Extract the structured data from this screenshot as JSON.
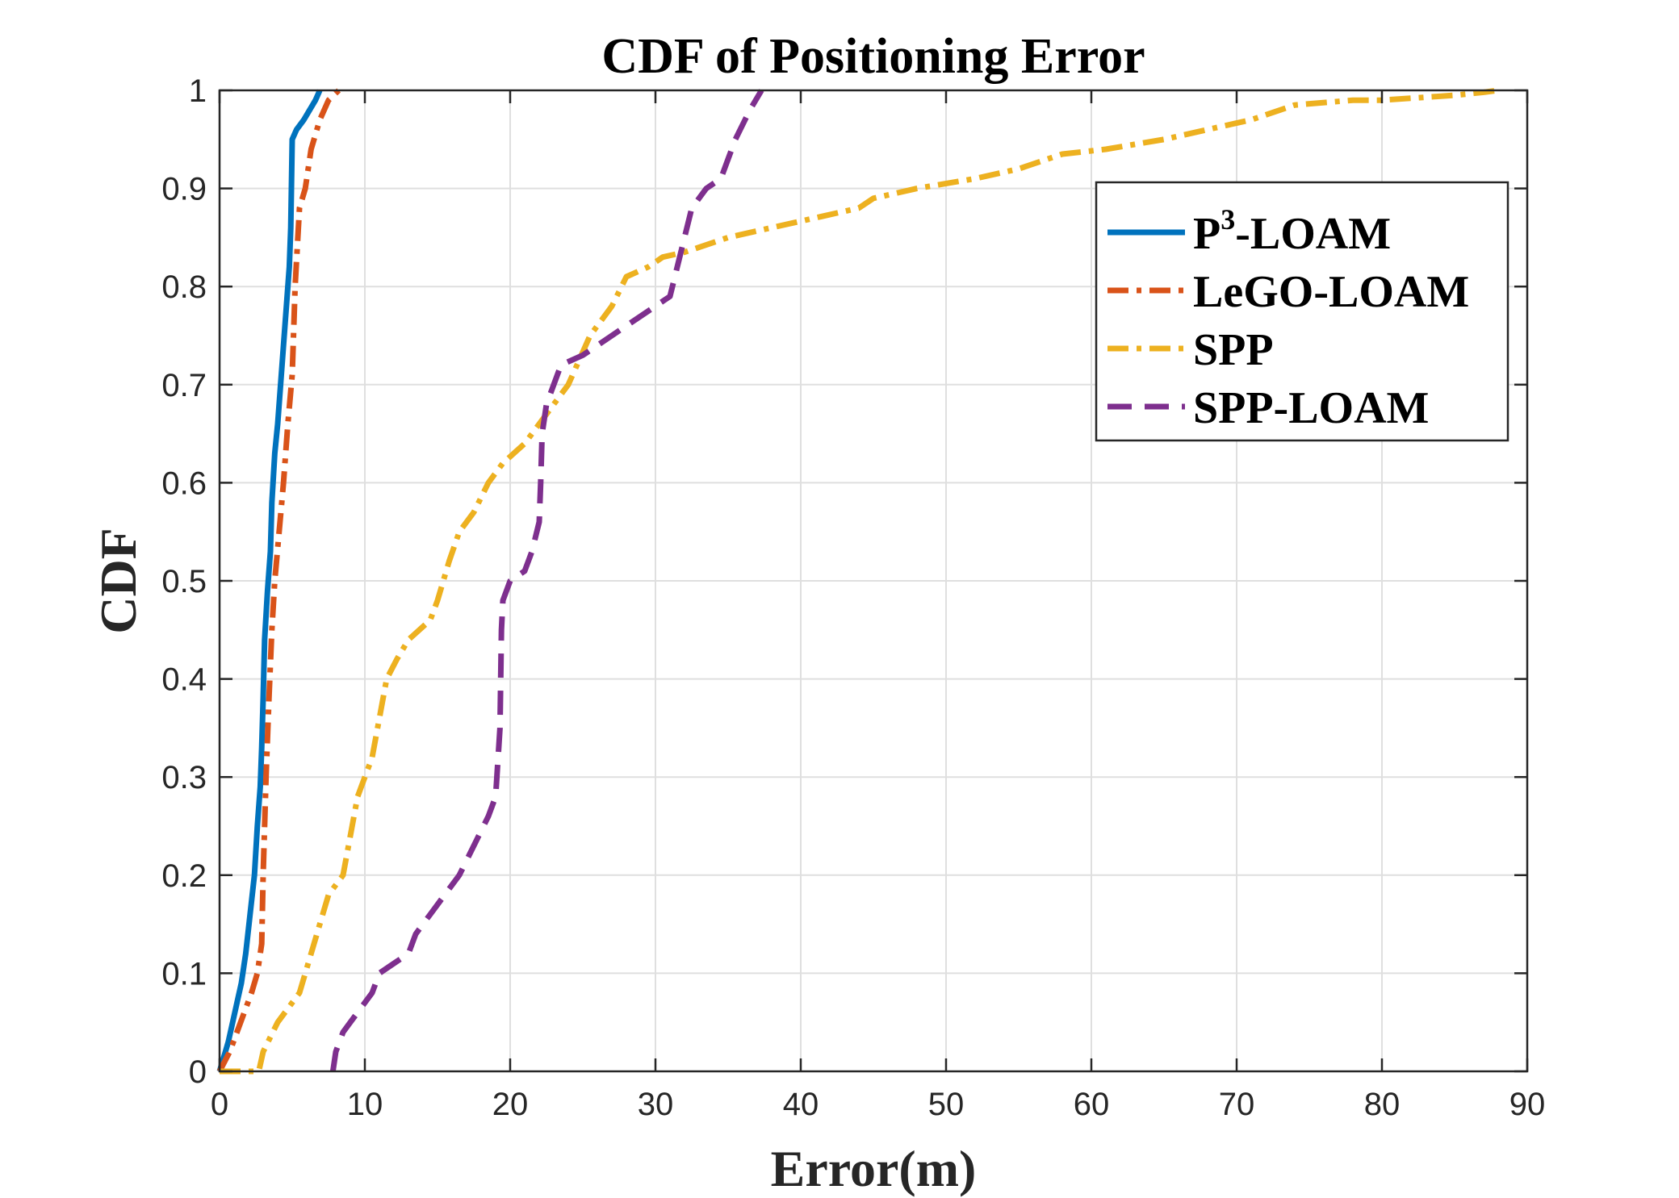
{
  "chart_data": {
    "type": "line",
    "title": "CDF of Positioning Error",
    "xlabel": "Error(m)",
    "ylabel": "CDF",
    "xlim": [
      0,
      90
    ],
    "ylim": [
      0,
      1
    ],
    "xticks": [
      0,
      10,
      20,
      30,
      40,
      50,
      60,
      70,
      80,
      90
    ],
    "yticks": [
      0,
      0.1,
      0.2,
      0.3,
      0.4,
      0.5,
      0.6,
      0.7,
      0.8,
      0.9,
      1
    ],
    "ytick_labels": [
      "0",
      "0.1",
      "0.2",
      "0.3",
      "0.4",
      "0.5",
      "0.6",
      "0.7",
      "0.8",
      "0.9",
      "1"
    ],
    "grid": true,
    "legend_position": "top-right",
    "series": [
      {
        "name": "P-LOAM",
        "name_superscript": "3",
        "color": "#0072BD",
        "style": "solid",
        "x": [
          0.0,
          0.4,
          0.6,
          0.9,
          1.2,
          1.5,
          1.8,
          2.1,
          2.4,
          2.6,
          2.8,
          2.9,
          3.0,
          3.1,
          3.3,
          3.5,
          3.6,
          3.8,
          4.0,
          4.2,
          4.5,
          4.8,
          4.9,
          5.0,
          5.3,
          5.8,
          6.2,
          6.6,
          6.9
        ],
        "y": [
          0.0,
          0.02,
          0.03,
          0.05,
          0.07,
          0.09,
          0.12,
          0.16,
          0.2,
          0.25,
          0.29,
          0.33,
          0.38,
          0.44,
          0.49,
          0.53,
          0.58,
          0.63,
          0.66,
          0.7,
          0.76,
          0.82,
          0.86,
          0.95,
          0.96,
          0.97,
          0.98,
          0.99,
          1.0
        ]
      },
      {
        "name": "LeGO-LOAM",
        "color": "#D95319",
        "style": "dashdot",
        "x": [
          0.0,
          0.7,
          1.2,
          1.7,
          2.2,
          2.6,
          2.9,
          3.0,
          3.2,
          3.4,
          3.6,
          3.8,
          4.1,
          4.4,
          4.7,
          5.0,
          5.2,
          5.5,
          5.9,
          6.3,
          6.9,
          7.5,
          8.2
        ],
        "y": [
          0.0,
          0.02,
          0.04,
          0.06,
          0.08,
          0.1,
          0.13,
          0.2,
          0.3,
          0.38,
          0.45,
          0.5,
          0.55,
          0.6,
          0.66,
          0.71,
          0.8,
          0.88,
          0.9,
          0.94,
          0.97,
          0.99,
          1.0
        ]
      },
      {
        "name": "SPP",
        "color": "#EDB120",
        "style": "dashdot",
        "x": [
          0.0,
          2.7,
          3.0,
          4.0,
          5.5,
          6.5,
          7.5,
          8.5,
          9.5,
          10.5,
          11.5,
          12.2,
          13.0,
          14.5,
          15.0,
          15.8,
          16.5,
          17.5,
          18.5,
          19.5,
          21.0,
          22.5,
          24.0,
          25.5,
          27.0,
          28.0,
          29.5,
          30.5,
          32.0,
          33.0,
          35.0,
          38.0,
          41.0,
          44.0,
          45.0,
          48.0,
          52.0,
          55.0,
          58.0,
          61.0,
          65.0,
          68.0,
          71.0,
          73.0,
          74.0,
          78.0,
          80.0,
          85.0,
          87.0,
          88.0
        ],
        "y": [
          0.0,
          0.0,
          0.02,
          0.05,
          0.08,
          0.13,
          0.18,
          0.2,
          0.28,
          0.32,
          0.4,
          0.42,
          0.44,
          0.46,
          0.48,
          0.52,
          0.55,
          0.57,
          0.6,
          0.62,
          0.64,
          0.67,
          0.7,
          0.75,
          0.78,
          0.81,
          0.82,
          0.83,
          0.835,
          0.84,
          0.85,
          0.86,
          0.87,
          0.88,
          0.89,
          0.9,
          0.91,
          0.92,
          0.935,
          0.94,
          0.95,
          0.96,
          0.97,
          0.98,
          0.985,
          0.99,
          0.99,
          0.995,
          0.998,
          1.0
        ]
      },
      {
        "name": "SPP-LOAM",
        "color": "#7E2F8E",
        "style": "dashed",
        "x": [
          7.8,
          8.0,
          8.5,
          9.5,
          10.5,
          11.0,
          12.0,
          13.0,
          13.5,
          14.5,
          15.5,
          16.5,
          17.5,
          18.5,
          19.0,
          19.3,
          19.4,
          19.5,
          20.0,
          21.0,
          21.5,
          22.0,
          22.1,
          22.2,
          22.5,
          23.5,
          25.0,
          26.0,
          27.0,
          28.0,
          29.0,
          30.0,
          31.0,
          31.5,
          32.0,
          32.5,
          33.5,
          34.5,
          35.0,
          35.5,
          36.5,
          37.3
        ],
        "y": [
          0.0,
          0.02,
          0.04,
          0.06,
          0.08,
          0.1,
          0.11,
          0.12,
          0.14,
          0.16,
          0.18,
          0.2,
          0.23,
          0.26,
          0.28,
          0.35,
          0.45,
          0.48,
          0.5,
          0.51,
          0.53,
          0.56,
          0.6,
          0.65,
          0.68,
          0.72,
          0.73,
          0.74,
          0.75,
          0.76,
          0.77,
          0.78,
          0.79,
          0.82,
          0.85,
          0.88,
          0.9,
          0.91,
          0.93,
          0.95,
          0.98,
          1.0
        ]
      }
    ]
  }
}
